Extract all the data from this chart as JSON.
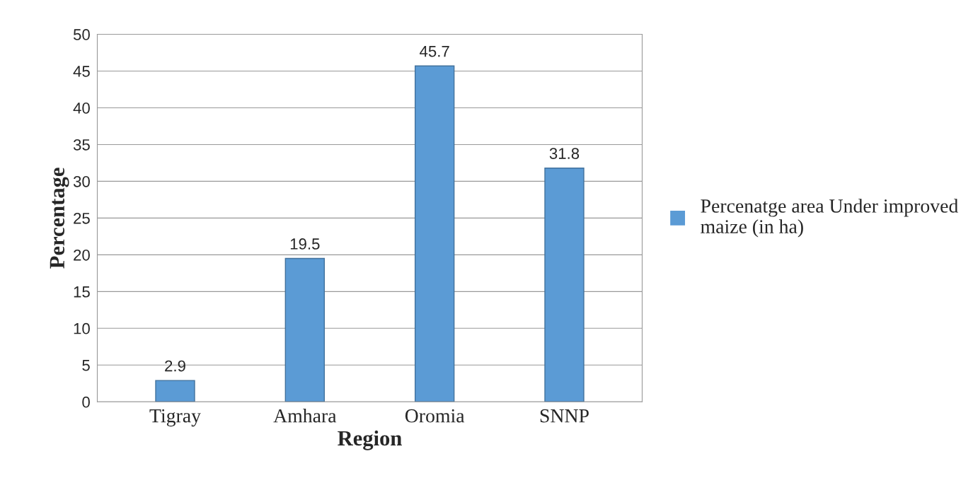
{
  "chart_data": {
    "type": "bar",
    "xlabel": "Region",
    "ylabel": "Percentage",
    "categories": [
      "Tigray",
      "Amhara",
      "Oromia",
      "SNNP"
    ],
    "series": [
      {
        "name": "Percenatge area Under improved maize (in ha)",
        "color": "#5b9bd5",
        "values": [
          2.9,
          19.5,
          45.7,
          31.8
        ]
      }
    ],
    "ylim": [
      0,
      50
    ],
    "yticks": [
      0,
      5,
      10,
      15,
      20,
      25,
      30,
      35,
      40,
      45,
      50
    ],
    "grid": "y",
    "legend": "right",
    "data_labels": true
  }
}
